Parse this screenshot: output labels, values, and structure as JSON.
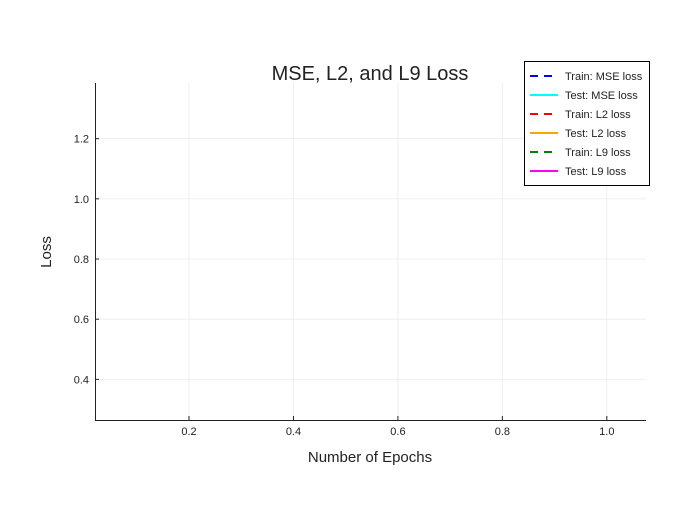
{
  "chart_data": {
    "type": "line",
    "title": "MSE, L2, and L9 Loss",
    "xlabel": "Number of Epochs",
    "ylabel": "Loss",
    "xlim": [
      0.02,
      1.075
    ],
    "ylim": [
      0.265,
      1.385
    ],
    "xticks": [
      0.2,
      0.4,
      0.6,
      0.8,
      1.0
    ],
    "xtick_labels": [
      "0.2",
      "0.4",
      "0.6",
      "0.8",
      "1.0"
    ],
    "yticks": [
      0.4,
      0.6,
      0.8,
      1.0,
      1.2
    ],
    "ytick_labels": [
      "0.4",
      "0.6",
      "0.8",
      "1.0",
      "1.2"
    ],
    "grid": true,
    "legend_position": "top-right",
    "series": [
      {
        "name": "Train: MSE loss",
        "color": "#0000ff",
        "dash": "dashed",
        "x": [],
        "y": []
      },
      {
        "name": "Test: MSE loss",
        "color": "#00ffff",
        "dash": "solid",
        "x": [],
        "y": []
      },
      {
        "name": "Train: L2 loss",
        "color": "#ff0000",
        "dash": "dashed",
        "x": [],
        "y": []
      },
      {
        "name": "Test: L2 loss",
        "color": "#ffa500",
        "dash": "solid",
        "x": [],
        "y": []
      },
      {
        "name": "Train: L9 loss",
        "color": "#008000",
        "dash": "dashed",
        "x": [],
        "y": []
      },
      {
        "name": "Test: L9 loss",
        "color": "#ff00ff",
        "dash": "solid",
        "x": [],
        "y": []
      }
    ]
  }
}
